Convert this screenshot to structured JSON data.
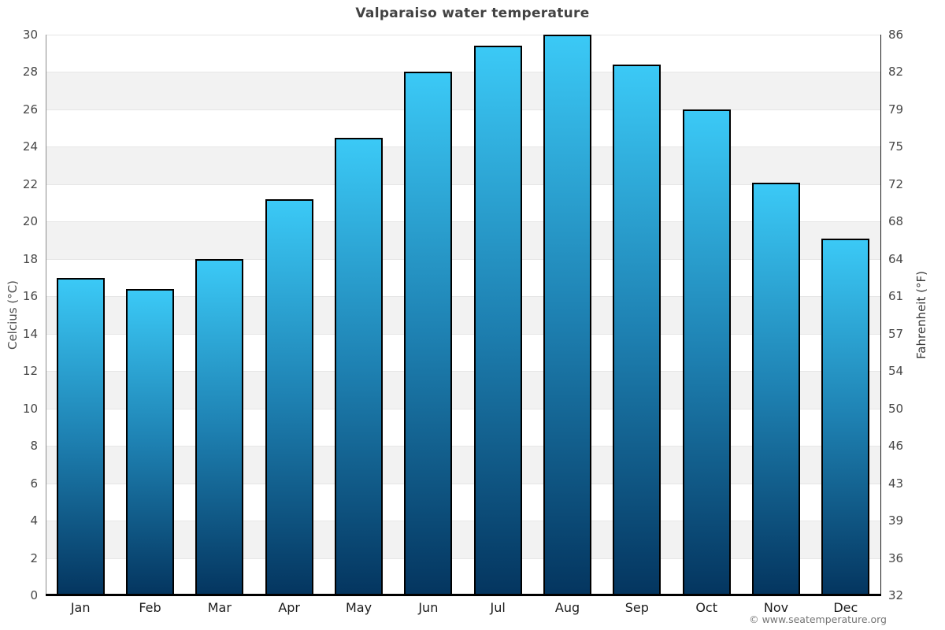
{
  "page": {
    "copyright": "© www.seatemperature.org"
  },
  "chart_data": {
    "type": "bar",
    "title": "Valparaiso water temperature",
    "categories": [
      "Jan",
      "Feb",
      "Mar",
      "Apr",
      "May",
      "Jun",
      "Jul",
      "Aug",
      "Sep",
      "Oct",
      "Nov",
      "Dec"
    ],
    "values": [
      17.0,
      16.4,
      18.0,
      21.2,
      24.5,
      28.0,
      29.4,
      30.0,
      28.4,
      26.0,
      22.1,
      19.1
    ],
    "value_unit": "°C",
    "ylabel_left": "Celcius (°C)",
    "ylabel_right": "Fahrenheit (°F)",
    "ylim": [
      0,
      30
    ],
    "ticks_celsius": [
      0,
      2,
      4,
      6,
      8,
      10,
      12,
      14,
      16,
      18,
      20,
      22,
      24,
      26,
      28,
      30
    ],
    "ticks_fahrenheit": [
      32,
      36,
      39,
      43,
      46,
      50,
      54,
      57,
      61,
      64,
      68,
      72,
      75,
      79,
      82,
      86
    ],
    "grid": "alternating horizontal bands every 2°C",
    "legend_position": "none",
    "colors": {
      "bar_gradient_top": "#3bc9f6",
      "bar_gradient_mid": "#1e81b2",
      "bar_gradient_bottom": "#04355f",
      "bar_border": "#000000",
      "band_light": "#ffffff",
      "band_dark": "#f2f2f2",
      "gridline": "#e6e6e6",
      "title_text": "#424242",
      "tick_text": "#474747"
    }
  }
}
